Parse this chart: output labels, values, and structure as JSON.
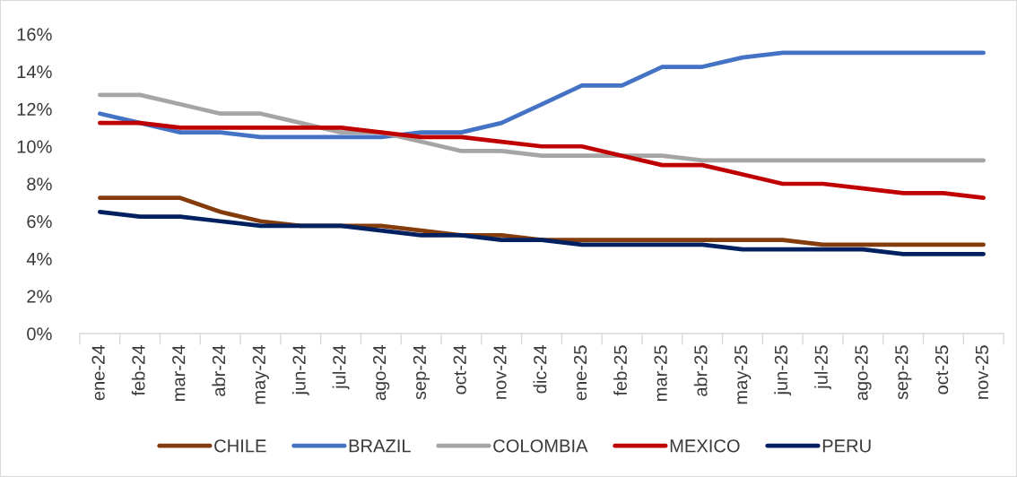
{
  "chart_data": {
    "type": "line",
    "categories": [
      "ene-24",
      "feb-24",
      "mar-24",
      "abr-24",
      "may-24",
      "jun-24",
      "jul-24",
      "ago-24",
      "sep-24",
      "oct-24",
      "nov-24",
      "dic-24",
      "ene-25",
      "feb-25",
      "mar-25",
      "abr-25",
      "may-25",
      "jun-25",
      "jul-25",
      "ago-25",
      "sep-25",
      "oct-25",
      "nov-25"
    ],
    "series": [
      {
        "name": "CHILE",
        "color": "#843c0c",
        "values": [
          7.25,
          7.25,
          7.25,
          6.5,
          6.0,
          5.75,
          5.75,
          5.75,
          5.5,
          5.25,
          5.25,
          5.0,
          5.0,
          5.0,
          5.0,
          5.0,
          5.0,
          5.0,
          4.75,
          4.75,
          4.75,
          4.75,
          4.75
        ]
      },
      {
        "name": "BRAZIL",
        "color": "#4472c4",
        "values": [
          11.75,
          11.25,
          10.75,
          10.75,
          10.5,
          10.5,
          10.5,
          10.5,
          10.75,
          10.75,
          11.25,
          12.25,
          13.25,
          13.25,
          14.25,
          14.25,
          14.75,
          15.0,
          15.0,
          15.0,
          15.0,
          15.0,
          15.0
        ]
      },
      {
        "name": "COLOMBIA",
        "color": "#a5a5a5",
        "values": [
          12.75,
          12.75,
          12.25,
          11.75,
          11.75,
          11.25,
          10.75,
          10.75,
          10.25,
          9.75,
          9.75,
          9.5,
          9.5,
          9.5,
          9.5,
          9.25,
          9.25,
          9.25,
          9.25,
          9.25,
          9.25,
          9.25,
          9.25
        ]
      },
      {
        "name": "MEXICO",
        "color": "#c00000",
        "values": [
          11.25,
          11.25,
          11.0,
          11.0,
          11.0,
          11.0,
          11.0,
          10.75,
          10.5,
          10.5,
          10.25,
          10.0,
          10.0,
          9.5,
          9.0,
          9.0,
          8.5,
          8.0,
          8.0,
          7.75,
          7.5,
          7.5,
          7.25
        ]
      },
      {
        "name": "PERU",
        "color": "#002060",
        "values": [
          6.5,
          6.25,
          6.25,
          6.0,
          5.75,
          5.75,
          5.75,
          5.5,
          5.25,
          5.25,
          5.0,
          5.0,
          4.75,
          4.75,
          4.75,
          4.75,
          4.5,
          4.5,
          4.5,
          4.5,
          4.25,
          4.25,
          4.25
        ]
      }
    ],
    "ylim": [
      0,
      16
    ],
    "yticks": [
      {
        "value": 0,
        "label": "0%"
      },
      {
        "value": 2,
        "label": "2%"
      },
      {
        "value": 4,
        "label": "4%"
      },
      {
        "value": 6,
        "label": "6%"
      },
      {
        "value": 8,
        "label": "8%"
      },
      {
        "value": 10,
        "label": "10%"
      },
      {
        "value": 12,
        "label": "12%"
      },
      {
        "value": 14,
        "label": "14%"
      },
      {
        "value": 16,
        "label": "16%"
      }
    ],
    "grid": false,
    "legend": "bottom",
    "line_style": "solid"
  }
}
